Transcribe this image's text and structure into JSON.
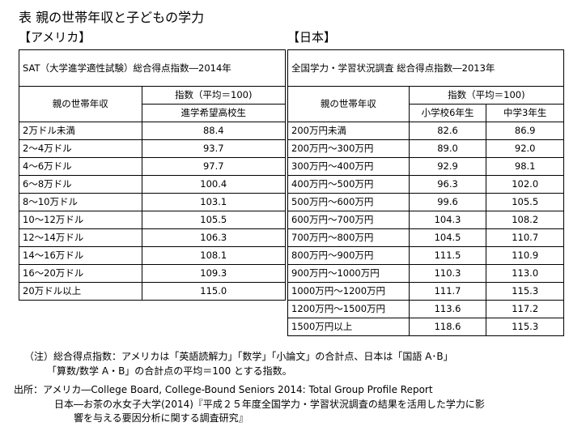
{
  "title": "表  親の世帯年収と子どもの学力",
  "usa": {
    "region_label": "【アメリカ】",
    "caption": "SAT（大学進学適性試験）総合得点指数―2014年",
    "col_income": "親の世帯年収",
    "col_index": "指数（平均＝100)",
    "col_group": "進学希望高校生",
    "rows": [
      {
        "income": "2万ドル未満",
        "v": "88.4"
      },
      {
        "income": "2～4万ドル",
        "v": "93.7"
      },
      {
        "income": "4～6万ドル",
        "v": "97.7"
      },
      {
        "income": "6～8万ドル",
        "v": "100.4"
      },
      {
        "income": "8～10万ドル",
        "v": "103.1"
      },
      {
        "income": "10～12万ドル",
        "v": "105.5"
      },
      {
        "income": "12～14万ドル",
        "v": "106.3"
      },
      {
        "income": "14～16万ドル",
        "v": "108.1"
      },
      {
        "income": "16～20万ドル",
        "v": "109.3"
      },
      {
        "income": "20万ドル以上",
        "v": "115.0"
      }
    ]
  },
  "japan": {
    "region_label": "【日本】",
    "caption": "全国学力・学習状況調査 総合得点指数―2013年",
    "col_income": "親の世帯年収",
    "col_index": "指数（平均＝100)",
    "col_g1": "小学校6年生",
    "col_g2": "中学3年生",
    "rows": [
      {
        "income": "200万円未満",
        "a": "82.6",
        "b": "86.9"
      },
      {
        "income": "200万円～300万円",
        "a": "89.0",
        "b": "92.0"
      },
      {
        "income": "300万円～400万円",
        "a": "92.9",
        "b": "98.1"
      },
      {
        "income": "400万円～500万円",
        "a": "96.3",
        "b": "102.0"
      },
      {
        "income": "500万円～600万円",
        "a": "99.6",
        "b": "105.5"
      },
      {
        "income": "600万円～700万円",
        "a": "104.3",
        "b": "108.2"
      },
      {
        "income": "700万円～800万円",
        "a": "104.5",
        "b": "110.7"
      },
      {
        "income": "800万円～900万円",
        "a": "111.5",
        "b": "110.9"
      },
      {
        "income": "900万円～1000万円",
        "a": "110.3",
        "b": "113.0"
      },
      {
        "income": "1000万円～1200万円",
        "a": "111.7",
        "b": "115.3"
      },
      {
        "income": "1200万円～1500万円",
        "a": "113.6",
        "b": "117.2"
      },
      {
        "income": "1500万円以上",
        "a": "118.6",
        "b": "115.3"
      }
    ]
  },
  "notes": {
    "line1": "（注）総合得点指数：アメリカは「英語読解力」「数学」「小論文」の合計点、日本は「国語 A･B」",
    "line2": "「算数/数学 A・B」の合計点の平均＝100 とする指数。"
  },
  "sources": {
    "line1": "出所：アメリカ―College Board, College-Bound Seniors 2014: Total Group Profile Report",
    "line2": "日本―お茶の水女子大学(2014)『平成２５年度全国学力・学習状況調査の結果を活用した学力に影",
    "line3": "響を与える要因分析に関する調査研究』"
  }
}
